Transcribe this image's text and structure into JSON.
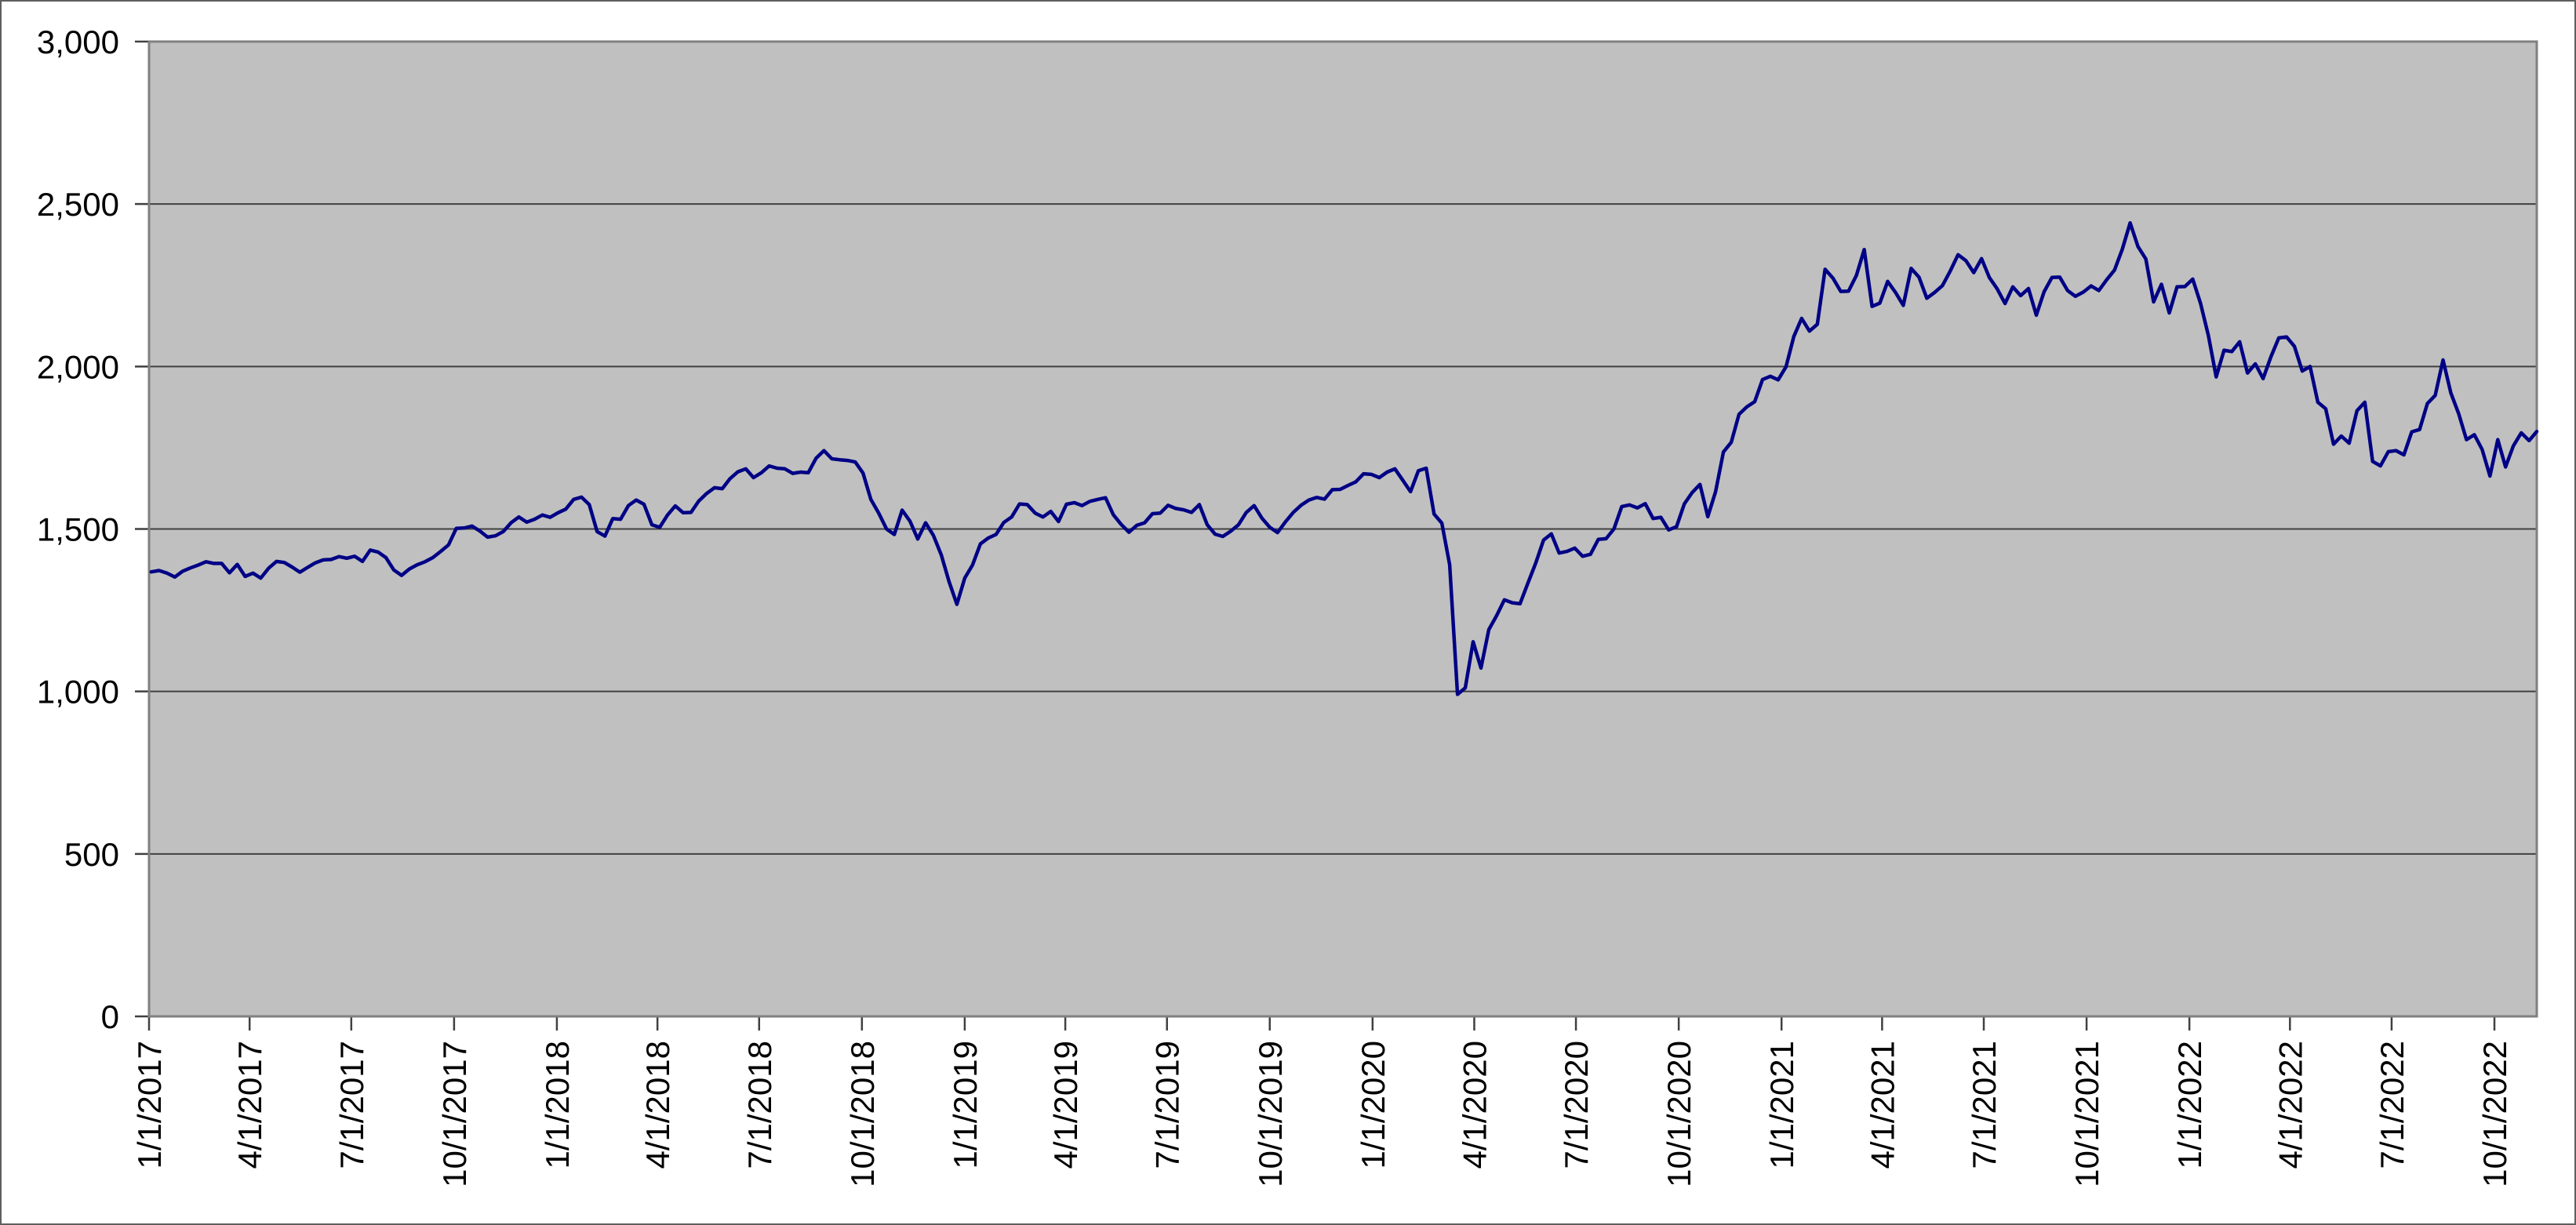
{
  "chart_data": {
    "type": "line",
    "title": "",
    "legend": "none",
    "grid": "horizontal",
    "x_axis": {
      "label_rotation_deg": -90,
      "tick_labels": [
        "1/1/2017",
        "4/1/2017",
        "7/1/2017",
        "10/1/2017",
        "1/1/2018",
        "4/1/2018",
        "7/1/2018",
        "10/1/2018",
        "1/1/2019",
        "4/1/2019",
        "7/1/2019",
        "10/1/2019",
        "1/1/2020",
        "4/1/2020",
        "7/1/2020",
        "10/1/2020",
        "1/1/2021",
        "4/1/2021",
        "7/1/2021",
        "10/1/2021",
        "1/1/2022",
        "4/1/2022",
        "7/1/2022",
        "10/1/2022"
      ]
    },
    "y_axis": {
      "min": 0,
      "max": 3000,
      "step": 500,
      "tick_labels": [
        "0",
        "500",
        "1,000",
        "1,500",
        "2,000",
        "2,500",
        "3,000"
      ]
    },
    "series": [
      {
        "name": "index-level",
        "color": "#000085",
        "start_date": "1/3/2017",
        "interval_days": 7,
        "values": [
          1368,
          1372,
          1364,
          1352,
          1370,
          1380,
          1389,
          1399,
          1394,
          1394,
          1365,
          1391,
          1354,
          1364,
          1349,
          1379,
          1400,
          1397,
          1383,
          1367,
          1382,
          1396,
          1405,
          1406,
          1415,
          1410,
          1416,
          1400,
          1435,
          1429,
          1412,
          1374,
          1357,
          1377,
          1390,
          1399,
          1412,
          1431,
          1451,
          1502,
          1503,
          1509,
          1494,
          1475,
          1479,
          1492,
          1519,
          1537,
          1521,
          1530,
          1543,
          1536,
          1550,
          1561,
          1591,
          1598,
          1575,
          1492,
          1478,
          1532,
          1530,
          1572,
          1589,
          1576,
          1513,
          1505,
          1543,
          1571,
          1550,
          1551,
          1586,
          1609,
          1627,
          1624,
          1655,
          1676,
          1685,
          1658,
          1673,
          1694,
          1687,
          1685,
          1671,
          1675,
          1673,
          1718,
          1741,
          1716,
          1713,
          1711,
          1706,
          1672,
          1591,
          1549,
          1500,
          1483,
          1558,
          1524,
          1469,
          1519,
          1480,
          1420,
          1338,
          1268,
          1349,
          1389,
          1454,
          1472,
          1483,
          1520,
          1537,
          1577,
          1575,
          1549,
          1537,
          1554,
          1523,
          1576,
          1581,
          1572,
          1585,
          1591,
          1596,
          1544,
          1514,
          1490,
          1511,
          1519,
          1547,
          1549,
          1573,
          1563,
          1559,
          1551,
          1575,
          1513,
          1484,
          1477,
          1493,
          1513,
          1551,
          1572,
          1533,
          1505,
          1489,
          1522,
          1551,
          1573,
          1589,
          1597,
          1592,
          1621,
          1622,
          1634,
          1645,
          1670,
          1668,
          1658,
          1675,
          1685,
          1650,
          1615,
          1679,
          1687,
          1546,
          1518,
          1390,
          991,
          1011,
          1153,
          1072,
          1190,
          1233,
          1282,
          1273,
          1270,
          1333,
          1395,
          1466,
          1485,
          1426,
          1431,
          1441,
          1416,
          1422,
          1468,
          1470,
          1500,
          1569,
          1574,
          1565,
          1578,
          1532,
          1536,
          1497,
          1507,
          1577,
          1612,
          1637,
          1538,
          1615,
          1737,
          1767,
          1853,
          1876,
          1892,
          1960,
          1970,
          1959,
          1999,
          2092,
          2148,
          2109,
          2130,
          2299,
          2272,
          2231,
          2232,
          2280,
          2360,
          2185,
          2195,
          2262,
          2228,
          2188,
          2302,
          2275,
          2210,
          2228,
          2249,
          2294,
          2344,
          2326,
          2289,
          2332,
          2274,
          2239,
          2194,
          2245,
          2218,
          2240,
          2158,
          2230,
          2274,
          2275,
          2234,
          2216,
          2229,
          2248,
          2234,
          2267,
          2297,
          2361,
          2442,
          2369,
          2331,
          2199,
          2253,
          2165,
          2245,
          2246,
          2269,
          2194,
          2096,
          1968,
          2050,
          2046,
          2076,
          1980,
          2008,
          1963,
          2030,
          2088,
          2091,
          2062,
          1986,
          2000,
          1890,
          1870,
          1761,
          1786,
          1764,
          1864,
          1890,
          1708,
          1694,
          1738,
          1741,
          1728,
          1799,
          1806,
          1886,
          1911,
          2020,
          1919,
          1855,
          1775,
          1790,
          1745,
          1663,
          1775,
          1691,
          1756,
          1796,
          1772,
          1800
        ]
      }
    ]
  },
  "colors": {
    "canvas_background": "#ffffff",
    "canvas_border": "#5f5f5f",
    "plot_background": "#c0c0c0",
    "plot_border": "#808080",
    "gridline": "#404040",
    "tick_mark": "#404040",
    "tick_text": "#000000",
    "line": "#000085"
  }
}
